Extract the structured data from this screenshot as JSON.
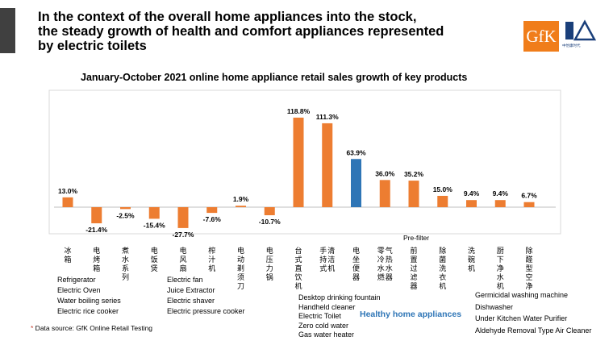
{
  "header": {
    "headline_line1": "In the context of the overall home appliances into the stock,",
    "headline_line2": "the steady growth of health and comfort appliances represented",
    "headline_line3": "by electric toilets",
    "gfk_logo_text": "GfK",
    "cmm_logo_text": "中怡康时代"
  },
  "chart_data": {
    "type": "bar",
    "title": "January-October 2021 online home appliance retail sales growth of key products",
    "unit": "%",
    "categories": [
      "冰箱",
      "电烤箱",
      "煮水系列",
      "电饭煲",
      "电风扇",
      "榨汁机",
      "电动剃须刀",
      "电压力锅",
      "台式直饮机",
      "手持式清洁机",
      "电坐便器",
      "零冷水燃气热水器",
      "前置过滤器",
      "除菌洗衣机",
      "洗碗机",
      "厨下净水机",
      "除醛型空净"
    ],
    "values": [
      13.0,
      -21.4,
      -2.5,
      -15.4,
      -27.7,
      -7.6,
      1.9,
      -10.7,
      118.8,
      111.3,
      63.9,
      36.0,
      35.2,
      15.0,
      9.4,
      9.4,
      6.7
    ],
    "value_labels": [
      "13.0%",
      "-21.4%",
      "-2.5%",
      "-15.4%",
      "-27.7%",
      "-7.6%",
      "1.9%",
      "-10.7%",
      "118.8%",
      "111.3%",
      "63.9%",
      "36.0%",
      "35.2%",
      "15.0%",
      "9.4%",
      "9.4%",
      "6.7%"
    ],
    "highlight_index": 10,
    "bar_color": "#ed7d31",
    "highlight_color": "#2e75b6",
    "group_break_after_index": 7
  },
  "legend": {
    "left_col1": [
      "Refrigerator",
      "Electric Oven",
      "Water boiling series",
      "Electric rice cooker"
    ],
    "left_col2": [
      "Electric fan",
      "Juice Extractor",
      "Electric shaver",
      "Electric pressure cooker"
    ],
    "middle": [
      "Desktop drinking fountain",
      "Handheld cleaner",
      "Electric Toilet",
      "Zero cold water",
      "Gas water heater"
    ],
    "prefilter": "Pre-filter",
    "right": [
      "Germicidal washing machine",
      "Dishwasher",
      "Under Kitchen Water Purifier",
      "Aldehyde Removal Type Air Cleaner"
    ],
    "healthy_label": "Healthy home appliances"
  },
  "source": {
    "star": "*",
    "text": " Data source: GfK Online Retail Testing"
  }
}
